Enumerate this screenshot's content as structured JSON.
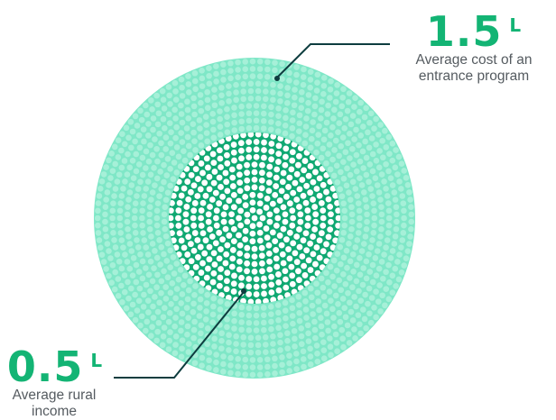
{
  "colors": {
    "outer_fill": "#7fe7c7",
    "outer_dots": "#a6f0d8",
    "inner_fill": "#0fa872",
    "inner_dots": "#ffffff",
    "leader_line": "#0e3d3f",
    "value_text": "#13b474",
    "label_text": "#555b60"
  },
  "callouts": {
    "top": {
      "value": "1.5",
      "unit": "L",
      "label_line1": "Average cost of an",
      "label_line2": "entrance program"
    },
    "bottom": {
      "value": "0.5",
      "unit": "L",
      "label_line1": "Average rural",
      "label_line2": "income"
    }
  }
}
